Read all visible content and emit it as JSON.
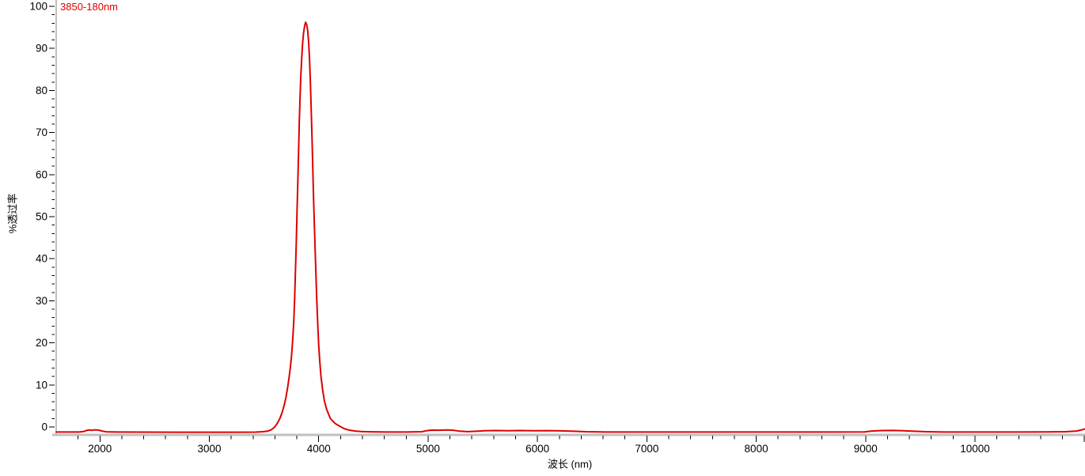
{
  "chart_data": {
    "type": "line",
    "title": "",
    "xlabel": "波长 (nm)",
    "ylabel": "%透过率",
    "grid": false,
    "legend": {
      "position": "top-left",
      "entries": [
        "3850-180nm"
      ]
    },
    "x_axis": {
      "min": 1600,
      "max": 11000,
      "major_tick": 1000,
      "minor_tick": 200,
      "labeled_ticks": [
        2000,
        3000,
        4000,
        5000,
        6000,
        7000,
        8000,
        9000,
        10000
      ]
    },
    "y_axis": {
      "min": 0,
      "max": 100,
      "major_tick": 10,
      "minor_tick": 2,
      "labeled_ticks": [
        0,
        10,
        20,
        30,
        40,
        50,
        60,
        70,
        80,
        90,
        100
      ]
    },
    "colors": {
      "series": "#dd0000",
      "axis_line": "#c0c0c0",
      "tick": "#000000",
      "text": "#000000",
      "background": "#ffffff"
    },
    "series": [
      {
        "name": "3850-180nm",
        "color": "#dd0000",
        "peak_wavelength_nm": 3880,
        "peak_transmission_pct": 96.2,
        "points": [
          [
            1600,
            -1.2
          ],
          [
            1700,
            -1.2
          ],
          [
            1810,
            -1.2
          ],
          [
            1855,
            -1.05
          ],
          [
            1880,
            -0.8
          ],
          [
            1905,
            -0.72
          ],
          [
            1925,
            -0.8
          ],
          [
            1945,
            -0.7
          ],
          [
            1975,
            -0.72
          ],
          [
            2000,
            -0.82
          ],
          [
            2025,
            -1.0
          ],
          [
            2060,
            -1.15
          ],
          [
            2150,
            -1.2
          ],
          [
            2400,
            -1.22
          ],
          [
            2700,
            -1.25
          ],
          [
            3000,
            -1.25
          ],
          [
            3250,
            -1.25
          ],
          [
            3420,
            -1.22
          ],
          [
            3490,
            -1.12
          ],
          [
            3530,
            -1.0
          ],
          [
            3565,
            -0.7
          ],
          [
            3595,
            -0.1
          ],
          [
            3620,
            0.8
          ],
          [
            3645,
            2.0
          ],
          [
            3665,
            3.4
          ],
          [
            3685,
            5.2
          ],
          [
            3700,
            7.0
          ],
          [
            3715,
            9.2
          ],
          [
            3728,
            11.5
          ],
          [
            3740,
            14.0
          ],
          [
            3752,
            17.0
          ],
          [
            3762,
            20.5
          ],
          [
            3772,
            25.0
          ],
          [
            3780,
            30.5
          ],
          [
            3788,
            37.5
          ],
          [
            3795,
            44.0
          ],
          [
            3802,
            51.0
          ],
          [
            3809,
            58.0
          ],
          [
            3816,
            65.5
          ],
          [
            3822,
            72.0
          ],
          [
            3829,
            78.0
          ],
          [
            3836,
            83.0
          ],
          [
            3844,
            87.5
          ],
          [
            3852,
            91.0
          ],
          [
            3861,
            93.6
          ],
          [
            3871,
            95.3
          ],
          [
            3880,
            96.2
          ],
          [
            3890,
            95.7
          ],
          [
            3899,
            94.2
          ],
          [
            3908,
            91.5
          ],
          [
            3916,
            87.5
          ],
          [
            3923,
            82.5
          ],
          [
            3930,
            77.0
          ],
          [
            3937,
            70.5
          ],
          [
            3944,
            63.5
          ],
          [
            3951,
            56.5
          ],
          [
            3958,
            50.0
          ],
          [
            3966,
            43.5
          ],
          [
            3974,
            37.0
          ],
          [
            3982,
            30.5
          ],
          [
            3991,
            24.5
          ],
          [
            4000,
            19.5
          ],
          [
            4010,
            15.5
          ],
          [
            4021,
            12.0
          ],
          [
            4036,
            8.8
          ],
          [
            4052,
            6.2
          ],
          [
            4070,
            4.4
          ],
          [
            4090,
            3.0
          ],
          [
            4108,
            2.0
          ],
          [
            4128,
            1.4
          ],
          [
            4152,
            0.8
          ],
          [
            4178,
            0.4
          ],
          [
            4205,
            0.0
          ],
          [
            4238,
            -0.45
          ],
          [
            4275,
            -0.72
          ],
          [
            4330,
            -0.95
          ],
          [
            4390,
            -1.08
          ],
          [
            4470,
            -1.15
          ],
          [
            4620,
            -1.2
          ],
          [
            4800,
            -1.2
          ],
          [
            4945,
            -1.12
          ],
          [
            4985,
            -0.88
          ],
          [
            5030,
            -0.76
          ],
          [
            5100,
            -0.78
          ],
          [
            5170,
            -0.72
          ],
          [
            5240,
            -0.8
          ],
          [
            5285,
            -1.0
          ],
          [
            5360,
            -1.1
          ],
          [
            5445,
            -1.02
          ],
          [
            5515,
            -0.9
          ],
          [
            5610,
            -0.85
          ],
          [
            5720,
            -0.88
          ],
          [
            5840,
            -0.85
          ],
          [
            5960,
            -0.9
          ],
          [
            6090,
            -0.87
          ],
          [
            6210,
            -0.93
          ],
          [
            6330,
            -1.02
          ],
          [
            6440,
            -1.12
          ],
          [
            6570,
            -1.18
          ],
          [
            6800,
            -1.2
          ],
          [
            7100,
            -1.2
          ],
          [
            7500,
            -1.2
          ],
          [
            7900,
            -1.2
          ],
          [
            8300,
            -1.2
          ],
          [
            8700,
            -1.2
          ],
          [
            8990,
            -1.17
          ],
          [
            9060,
            -0.95
          ],
          [
            9150,
            -0.84
          ],
          [
            9250,
            -0.82
          ],
          [
            9350,
            -0.9
          ],
          [
            9445,
            -1.02
          ],
          [
            9560,
            -1.13
          ],
          [
            9720,
            -1.2
          ],
          [
            10050,
            -1.2
          ],
          [
            10400,
            -1.2
          ],
          [
            10650,
            -1.18
          ],
          [
            10830,
            -1.12
          ],
          [
            10930,
            -0.95
          ],
          [
            10985,
            -0.62
          ],
          [
            11005,
            -0.45
          ]
        ]
      }
    ]
  }
}
